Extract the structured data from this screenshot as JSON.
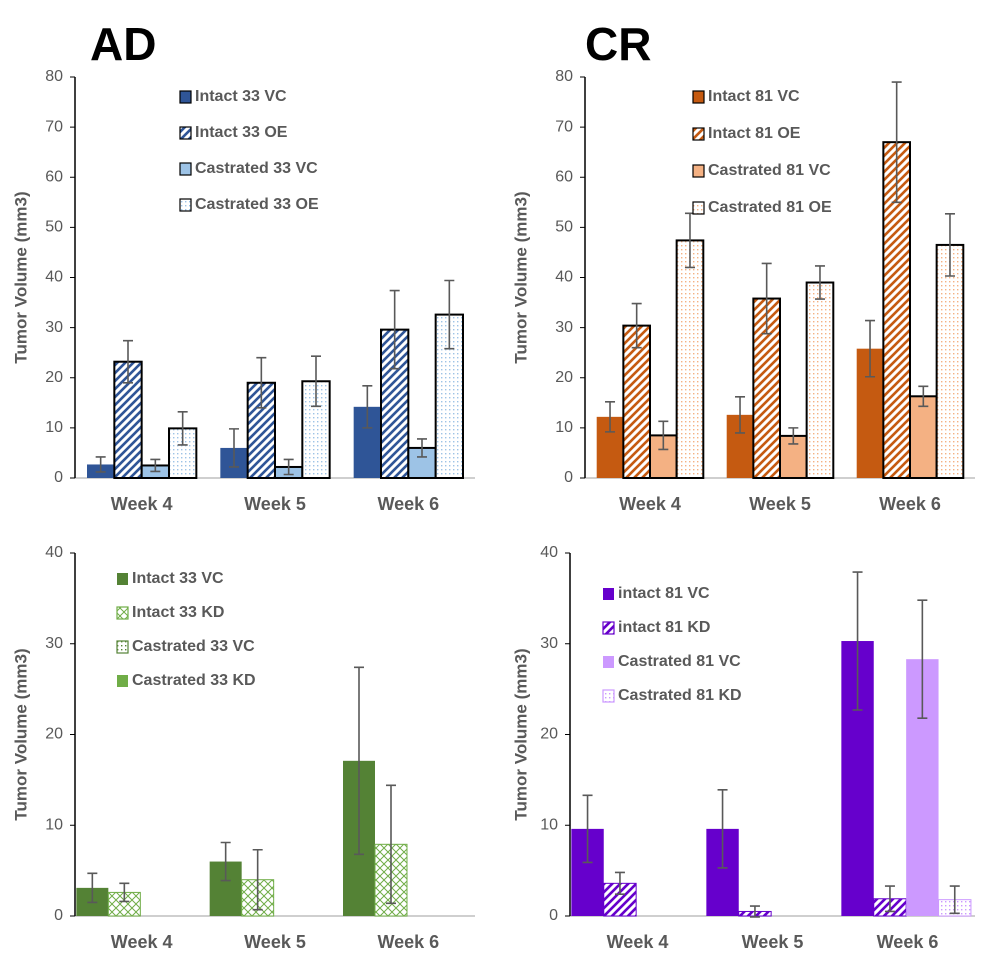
{
  "chart_data": [
    {
      "type": "bar",
      "title": "AD",
      "y_label": "Tumor Volume (mm3)",
      "categories": [
        "Week 4",
        "Week 5",
        "Week 6"
      ],
      "ylim": [
        0,
        80
      ],
      "yticks": [
        0,
        10,
        20,
        30,
        40,
        50,
        60,
        70,
        80
      ],
      "edgecolor": "#000000",
      "series": [
        {
          "name": "Intact 33 VC",
          "color": "#2f5597",
          "pattern": "solid",
          "values": [
            2.7,
            6,
            14.2
          ],
          "errors": [
            1.5,
            3.8,
            4.2
          ]
        },
        {
          "name": "Intact 33 OE",
          "color": "#2f5597",
          "pattern": "stripes",
          "values": [
            23.2,
            19,
            29.6
          ],
          "errors": [
            4.2,
            5,
            7.8
          ]
        },
        {
          "name": "Castrated 33 VC",
          "color": "#9dc3e6",
          "pattern": "solid",
          "values": [
            2.5,
            2.2,
            6
          ],
          "errors": [
            1.2,
            1.5,
            1.8
          ]
        },
        {
          "name": "Castrated 33 OE",
          "color": "#9dc3e6",
          "pattern": "dots",
          "values": [
            9.9,
            19.3,
            32.6
          ],
          "errors": [
            3.3,
            5,
            6.8
          ]
        }
      ]
    },
    {
      "type": "bar",
      "title": "CR",
      "y_label": "Tumor Volume (mm3)",
      "categories": [
        "Week 4",
        "Week 5",
        "Week 6"
      ],
      "ylim": [
        0,
        80
      ],
      "yticks": [
        0,
        10,
        20,
        30,
        40,
        50,
        60,
        70,
        80
      ],
      "edgecolor": "#000000",
      "series": [
        {
          "name": "Intact 81 VC",
          "color": "#c55a11",
          "pattern": "solid",
          "values": [
            12.2,
            12.6,
            25.8
          ],
          "errors": [
            3,
            3.6,
            5.6
          ]
        },
        {
          "name": "Intact 81 OE",
          "color": "#c55a11",
          "pattern": "stripes",
          "values": [
            30.4,
            35.8,
            67
          ],
          "errors": [
            4.4,
            7,
            12
          ]
        },
        {
          "name": "Castrated 81 VC",
          "color": "#f4b183",
          "pattern": "solid",
          "values": [
            8.5,
            8.4,
            16.3
          ],
          "errors": [
            2.8,
            1.6,
            2
          ]
        },
        {
          "name": "Castrated 81 OE",
          "color": "#f4b183",
          "pattern": "dots",
          "values": [
            47.4,
            39,
            46.5
          ],
          "errors": [
            5.4,
            3.3,
            6.2
          ]
        }
      ]
    },
    {
      "type": "bar",
      "y_label": "Tumor Volume (mm3)",
      "categories": [
        "Week 4",
        "Week 5",
        "Week 6"
      ],
      "ylim": [
        0,
        40
      ],
      "yticks": [
        0,
        10,
        20,
        30,
        40
      ],
      "series": [
        {
          "name": "Intact 33 VC",
          "color": "#548235",
          "pattern": "solid",
          "values": [
            3.1,
            6,
            17.1
          ],
          "errors": [
            1.6,
            2.1,
            10.3
          ]
        },
        {
          "name": "Intact 33 KD",
          "color": "#70ad47",
          "pattern": "cross",
          "values": [
            2.6,
            4,
            7.9
          ],
          "errors": [
            1,
            3.3,
            6.5
          ]
        },
        {
          "name": "Castrated 33 VC",
          "color": "#548235",
          "pattern": "dots",
          "values": [
            null,
            null,
            null
          ],
          "errors": [
            null,
            null,
            null
          ]
        },
        {
          "name": "Castrated 33 KD",
          "color": "#70ad47",
          "pattern": "solid",
          "values": [
            null,
            null,
            null
          ],
          "errors": [
            null,
            null,
            null
          ]
        }
      ]
    },
    {
      "type": "bar",
      "y_label": "Tumor Volume (mm3)",
      "categories": [
        "Week 4",
        "Week 5",
        "Week 6"
      ],
      "ylim": [
        0,
        40
      ],
      "yticks": [
        0,
        10,
        20,
        30,
        40
      ],
      "series": [
        {
          "name": "intact 81 VC",
          "color": "#6600cc",
          "pattern": "solid",
          "values": [
            9.6,
            9.6,
            30.3
          ],
          "errors": [
            3.7,
            4.3,
            7.6
          ]
        },
        {
          "name": "intact 81 KD",
          "color": "#6600cc",
          "pattern": "stripes",
          "values": [
            3.6,
            0.5,
            1.9
          ],
          "errors": [
            1.2,
            0.6,
            1.4
          ]
        },
        {
          "name": "Castrated 81 VC",
          "color": "#cc99ff",
          "pattern": "solid",
          "values": [
            null,
            null,
            28.3
          ],
          "errors": [
            null,
            null,
            6.5
          ]
        },
        {
          "name": "Castrated 81 KD",
          "color": "#cc99ff",
          "pattern": "dots",
          "values": [
            null,
            null,
            1.8
          ],
          "errors": [
            null,
            null,
            1.5
          ]
        }
      ]
    }
  ]
}
